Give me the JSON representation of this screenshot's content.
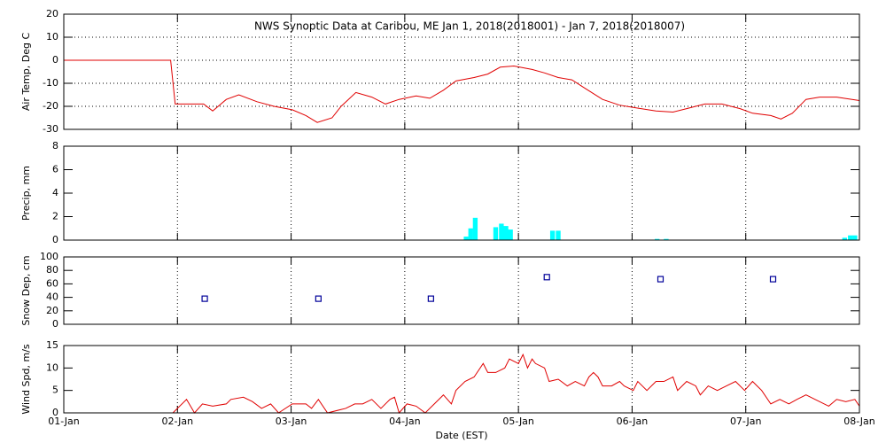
{
  "chart_data": [
    {
      "type": "line",
      "title": "NWS Synoptic Data at Caribou, ME   Jan  1, 2018(2018001) - Jan  7, 2018(2018007)",
      "ylabel": "Air Temp, Deg C",
      "color": "#e00000",
      "grid": "both",
      "xlim": [
        0,
        7
      ],
      "xticks": [
        0,
        1,
        2,
        3,
        4,
        5,
        6,
        7
      ],
      "ylim": [
        -30,
        20
      ],
      "yticks": [
        -30,
        -20,
        -10,
        0,
        10,
        20
      ],
      "x": [
        0,
        0.94,
        0.98,
        1.23,
        1.31,
        1.43,
        1.54,
        1.7,
        1.85,
        2.01,
        2.13,
        2.23,
        2.36,
        2.44,
        2.57,
        2.71,
        2.83,
        2.95,
        3.1,
        3.22,
        3.34,
        3.45,
        3.61,
        3.73,
        3.84,
        3.96,
        4.12,
        4.23,
        4.35,
        4.47,
        4.58,
        4.74,
        4.89,
        5.01,
        5.21,
        5.36,
        5.48,
        5.64,
        5.79,
        5.95,
        6.06,
        6.22,
        6.31,
        6.41,
        6.53,
        6.65,
        6.8,
        7.0
      ],
      "values": [
        0,
        0,
        -19,
        -19,
        -22,
        -17,
        -15,
        -18,
        -20,
        -21.5,
        -24,
        -27,
        -25,
        -20,
        -14,
        -16,
        -19,
        -17,
        -15.5,
        -16.5,
        -13,
        -9,
        -7.5,
        -6,
        -3,
        -2.5,
        -4,
        -5.5,
        -7.5,
        -8.5,
        -12,
        -17,
        -19.5,
        -20.5,
        -22,
        -22.5,
        -21,
        -19,
        -19,
        -21,
        -23,
        -24,
        -25.5,
        -23,
        -17,
        -16,
        -16,
        -17.5
      ]
    },
    {
      "type": "bar",
      "ylabel": "Precip, mm",
      "color": "#00ffff",
      "grid": "x",
      "xlim": [
        0,
        7
      ],
      "xticks": [
        0,
        1,
        2,
        3,
        4,
        5,
        6,
        7
      ],
      "ylim": [
        0,
        8
      ],
      "yticks": [
        0,
        2,
        4,
        6,
        8
      ],
      "x": [
        3.54,
        3.58,
        3.62,
        3.8,
        3.85,
        3.89,
        3.93,
        4.3,
        4.35,
        5.22,
        5.3,
        6.87,
        6.92,
        6.96
      ],
      "values": [
        0.3,
        1.0,
        1.9,
        1.1,
        1.4,
        1.2,
        0.9,
        0.8,
        0.8,
        0.1,
        0.1,
        0.2,
        0.4,
        0.4
      ]
    },
    {
      "type": "scatter",
      "ylabel": "Snow Dep, cm",
      "color": "#000099",
      "grid": "x",
      "xlim": [
        0,
        7
      ],
      "xticks": [
        0,
        1,
        2,
        3,
        4,
        5,
        6,
        7
      ],
      "ylim": [
        0,
        100
      ],
      "yticks": [
        0,
        20,
        40,
        60,
        80,
        100
      ],
      "x": [
        1.24,
        2.24,
        3.23,
        4.25,
        5.25,
        6.24
      ],
      "values": [
        38,
        38,
        38,
        70,
        67,
        67
      ]
    },
    {
      "type": "line",
      "ylabel": "Wind Spd, m/s",
      "xlabel": "Date (EST)",
      "color": "#e00000",
      "grid": "x",
      "xlim": [
        0,
        7
      ],
      "xticks": [
        {
          "value": 0,
          "label": "01-Jan"
        },
        {
          "value": 1,
          "label": "02-Jan"
        },
        {
          "value": 2,
          "label": "03-Jan"
        },
        {
          "value": 3,
          "label": "04-Jan"
        },
        {
          "value": 4,
          "label": "05-Jan"
        },
        {
          "value": 5,
          "label": "06-Jan"
        },
        {
          "value": 6,
          "label": "07-Jan"
        },
        {
          "value": 7,
          "label": "08-Jan"
        }
      ],
      "ylim": [
        0,
        15
      ],
      "yticks": [
        0,
        5,
        10,
        15
      ],
      "x": [
        0.96,
        1.08,
        1.15,
        1.22,
        1.31,
        1.43,
        1.47,
        1.58,
        1.66,
        1.74,
        1.82,
        1.89,
        2.01,
        2.13,
        2.18,
        2.24,
        2.32,
        2.48,
        2.56,
        2.63,
        2.71,
        2.79,
        2.87,
        2.91,
        2.95,
        3.02,
        3.1,
        3.18,
        3.26,
        3.34,
        3.41,
        3.45,
        3.53,
        3.61,
        3.69,
        3.73,
        3.8,
        3.88,
        3.92,
        4.0,
        4.04,
        4.08,
        4.12,
        4.15,
        4.23,
        4.27,
        4.35,
        4.43,
        4.5,
        4.58,
        4.62,
        4.66,
        4.7,
        4.74,
        4.82,
        4.89,
        4.93,
        5.01,
        5.05,
        5.13,
        5.21,
        5.28,
        5.36,
        5.4,
        5.48,
        5.56,
        5.6,
        5.67,
        5.75,
        5.83,
        5.91,
        5.99,
        6.06,
        6.1,
        6.14,
        6.22,
        6.3,
        6.38,
        6.45,
        6.53,
        6.61,
        6.73,
        6.8,
        6.88,
        6.96,
        7.0
      ],
      "values": [
        0,
        3,
        0,
        2,
        1.5,
        2,
        3,
        3.5,
        2.5,
        1,
        2,
        0,
        2,
        2,
        1,
        3,
        0,
        1,
        2,
        2,
        3,
        1,
        3,
        3.5,
        0,
        2,
        1.5,
        0,
        2,
        4,
        2,
        5,
        7,
        8,
        11,
        9,
        9,
        10,
        12,
        11,
        13,
        10,
        12,
        11,
        10,
        7,
        7.5,
        6,
        7,
        6,
        8,
        9,
        8,
        6,
        6,
        7,
        6,
        5,
        7,
        5,
        7,
        7,
        8,
        5,
        7,
        6,
        4,
        6,
        5,
        6,
        7,
        5,
        7,
        6,
        5,
        2,
        3,
        2,
        3,
        4,
        3,
        1.5,
        3,
        2.5,
        3,
        1.5
      ]
    }
  ]
}
